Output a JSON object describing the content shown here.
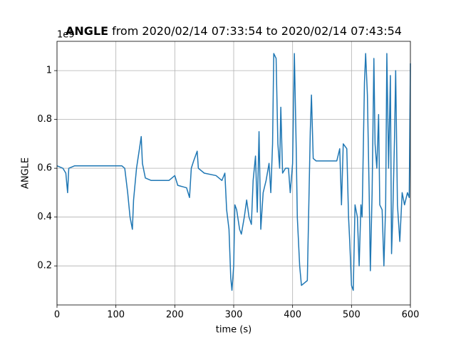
{
  "chart_data": {
    "type": "line",
    "title_bold": "ANGLE",
    "title": "from 2020/02/14 07:33:54 to 2020/02/14 07:43:54",
    "xlabel": "time (s)",
    "ylabel": "ANGLE",
    "y_offset_label": "1e9",
    "xlim": [
      0,
      600
    ],
    "ylim": [
      0.04,
      1.12
    ],
    "xticks": [
      0,
      100,
      200,
      300,
      400,
      500,
      600
    ],
    "yticks": [
      0.2,
      0.4,
      0.6,
      0.8,
      1.0
    ],
    "grid": true,
    "x": [
      0,
      10,
      15,
      18,
      20,
      30,
      60,
      90,
      110,
      115,
      120,
      124,
      128,
      130,
      135,
      140,
      143,
      145,
      150,
      160,
      180,
      190,
      200,
      205,
      220,
      225,
      228,
      232,
      238,
      240,
      250,
      270,
      280,
      285,
      288,
      292,
      295,
      297,
      300,
      302,
      305,
      310,
      313,
      318,
      322,
      326,
      330,
      333,
      337,
      340,
      343,
      346,
      350,
      355,
      360,
      363,
      366,
      368,
      372,
      375,
      378,
      380,
      383,
      388,
      393,
      396,
      400,
      403,
      406,
      408,
      412,
      415,
      420,
      425,
      430,
      432,
      435,
      440,
      460,
      475,
      480,
      483,
      486,
      492,
      495,
      497,
      500,
      503,
      506,
      510,
      513,
      516,
      518,
      522,
      524,
      527,
      530,
      532,
      535,
      538,
      540,
      543,
      546,
      548,
      552,
      555,
      558,
      560,
      563,
      566,
      568,
      570,
      573,
      575,
      578,
      582,
      586,
      590,
      595,
      598,
      600
    ],
    "series": [
      {
        "name": "ANGLE",
        "color": "#1f77b4",
        "values": [
          0.61,
          0.6,
          0.58,
          0.5,
          0.6,
          0.61,
          0.61,
          0.61,
          0.61,
          0.6,
          0.5,
          0.4,
          0.35,
          0.47,
          0.6,
          0.68,
          0.73,
          0.62,
          0.56,
          0.55,
          0.55,
          0.55,
          0.57,
          0.53,
          0.52,
          0.48,
          0.6,
          0.63,
          0.67,
          0.6,
          0.58,
          0.57,
          0.55,
          0.58,
          0.43,
          0.35,
          0.15,
          0.1,
          0.2,
          0.45,
          0.43,
          0.35,
          0.33,
          0.4,
          0.47,
          0.4,
          0.37,
          0.55,
          0.65,
          0.42,
          0.75,
          0.35,
          0.5,
          0.55,
          0.62,
          0.5,
          0.7,
          1.07,
          1.05,
          0.7,
          0.6,
          0.85,
          0.58,
          0.6,
          0.6,
          0.5,
          0.62,
          1.07,
          0.7,
          0.4,
          0.2,
          0.12,
          0.13,
          0.14,
          0.75,
          0.9,
          0.64,
          0.63,
          0.63,
          0.63,
          0.68,
          0.45,
          0.7,
          0.68,
          0.4,
          0.3,
          0.12,
          0.1,
          0.45,
          0.4,
          0.2,
          0.45,
          0.4,
          0.95,
          1.07,
          0.9,
          0.5,
          0.18,
          0.5,
          1.05,
          0.7,
          0.6,
          0.82,
          0.45,
          0.43,
          0.2,
          0.45,
          1.07,
          0.6,
          0.98,
          0.25,
          0.4,
          0.72,
          1.0,
          0.45,
          0.3,
          0.5,
          0.45,
          0.5,
          0.48,
          1.03
        ]
      }
    ]
  }
}
